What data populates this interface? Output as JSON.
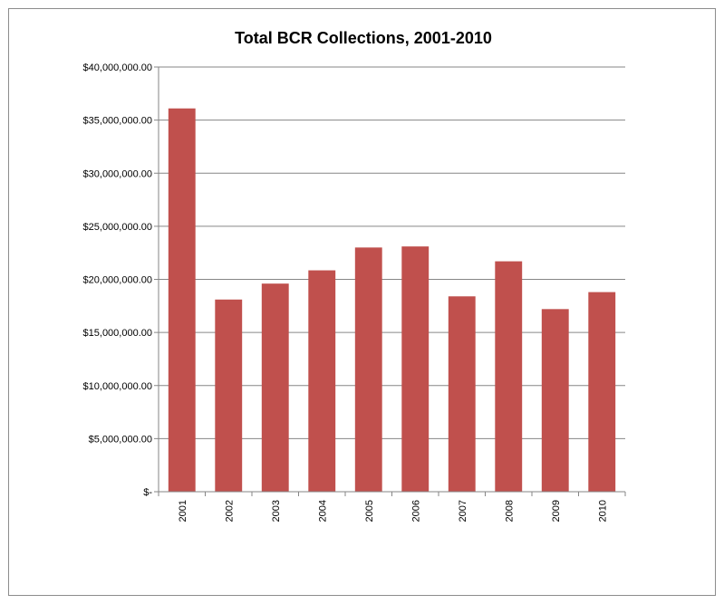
{
  "chart_data": {
    "type": "bar",
    "title": "Total BCR Collections, 2001-2010",
    "xlabel": "",
    "ylabel": "",
    "categories": [
      "2001",
      "2002",
      "2003",
      "2004",
      "2005",
      "2006",
      "2007",
      "2008",
      "2009",
      "2010"
    ],
    "values": [
      36100000,
      18100000,
      19600000,
      20850000,
      23000000,
      23100000,
      18400000,
      21700000,
      17200000,
      18800000
    ],
    "ylim": [
      0,
      40000000
    ],
    "y_tick_values": [
      0,
      5000000,
      10000000,
      15000000,
      20000000,
      25000000,
      30000000,
      35000000,
      40000000
    ],
    "y_tick_labels": [
      "$-",
      "$5,000,000.00",
      "$10,000,000.00",
      "$15,000,000.00",
      "$20,000,000.00",
      "$25,000,000.00",
      "$30,000,000.00",
      "$35,000,000.00",
      "$40,000,000.00"
    ],
    "grid": true,
    "legend": "none",
    "bar_color": "#c0504d",
    "gridline_color": "#868686"
  }
}
